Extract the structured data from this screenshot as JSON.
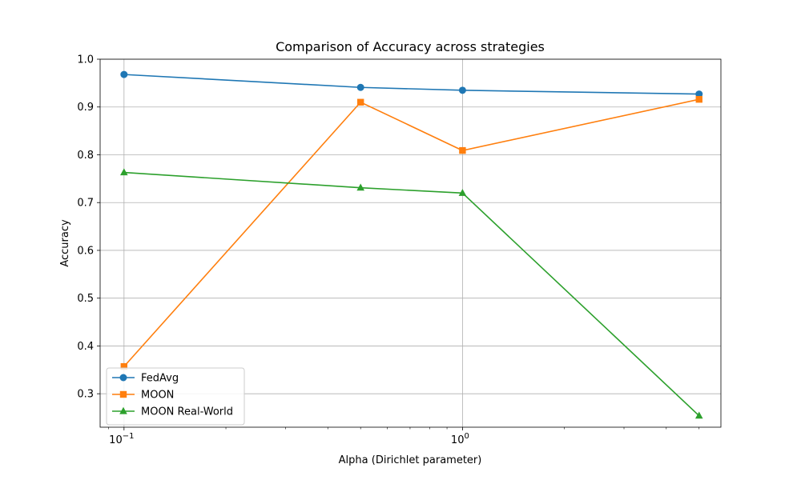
{
  "chart_data": {
    "type": "line",
    "title": "Comparison of Accuracy across strategies",
    "xlabel": "Alpha (Dirichlet parameter)",
    "ylabel": "Accuracy",
    "xscale": "log",
    "xlim": [
      0.085,
      5.8
    ],
    "ylim": [
      0.23,
      1.0
    ],
    "x_tick_labels": [
      "10^-1",
      "10^0"
    ],
    "y_ticks": [
      0.3,
      0.4,
      0.5,
      0.6,
      0.7,
      0.8,
      0.9,
      1.0
    ],
    "y_tick_labels": [
      "0.3",
      "0.4",
      "0.5",
      "0.6",
      "0.7",
      "0.8",
      "0.9",
      "1.0"
    ],
    "grid": true,
    "legend_position": "lower-left",
    "x": [
      0.1,
      0.5,
      1.0,
      5.0
    ],
    "series": [
      {
        "name": "FedAvg",
        "values": [
          0.968,
          0.941,
          0.935,
          0.927
        ],
        "color": "#1f77b4",
        "marker": "circle"
      },
      {
        "name": "MOON",
        "values": [
          0.357,
          0.91,
          0.809,
          0.916
        ],
        "color": "#ff7f0e",
        "marker": "square"
      },
      {
        "name": "MOON Real-World",
        "values": [
          0.763,
          0.731,
          0.72,
          0.254
        ],
        "color": "#2ca02c",
        "marker": "triangle"
      }
    ]
  }
}
